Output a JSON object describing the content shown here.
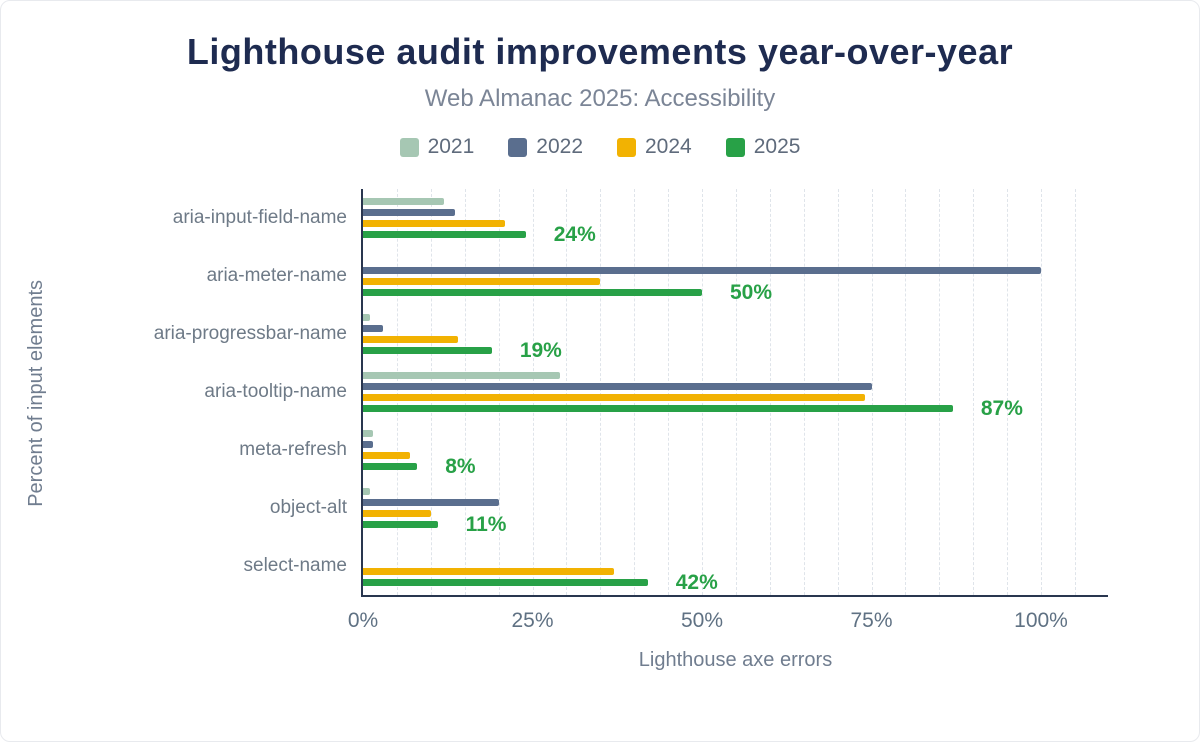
{
  "title": "Lighthouse audit improvements year-over-year",
  "subtitle": "Web Almanac 2025: Accessibility",
  "chart_data": {
    "type": "bar",
    "orientation": "horizontal",
    "title": "Lighthouse audit improvements year-over-year",
    "subtitle": "Web Almanac 2025: Accessibility",
    "xlabel": "Lighthouse axe errors",
    "ylabel": "Percent of input elements",
    "xlim": [
      0,
      100
    ],
    "grid": true,
    "legend_position": "top",
    "categories": [
      "aria-input-field-name",
      "aria-meter-name",
      "aria-progressbar-name",
      "aria-tooltip-name",
      "meta-refresh",
      "object-alt",
      "select-name"
    ],
    "series": [
      {
        "name": "2021",
        "color": "#a6c7b3",
        "values": [
          12,
          0,
          1,
          29,
          1.5,
          1,
          0
        ]
      },
      {
        "name": "2022",
        "color": "#5a6e8e",
        "values": [
          13.5,
          100,
          3,
          75,
          1.5,
          20,
          0
        ]
      },
      {
        "name": "2024",
        "color": "#f2b202",
        "values": [
          21,
          35,
          14,
          74,
          7,
          10,
          37
        ]
      },
      {
        "name": "2025",
        "color": "#28a147",
        "values": [
          24,
          50,
          19,
          87,
          8,
          11,
          42
        ]
      }
    ],
    "value_labels": [
      "24%",
      "50%",
      "19%",
      "87%",
      "8%",
      "11%",
      "42%"
    ],
    "value_label_series": "2025",
    "value_label_color": "#28a147",
    "x_tick_values": [
      0,
      25,
      50,
      75,
      100
    ],
    "x_tick_labels": [
      "0%",
      "25%",
      "50%",
      "75%",
      "100%"
    ]
  },
  "colors": {
    "title": "#1e2b50",
    "subtitle": "#7b8596",
    "axis_line": "#29364f",
    "gridline": "#dfe4ea",
    "tick_label": "#5f7183"
  }
}
